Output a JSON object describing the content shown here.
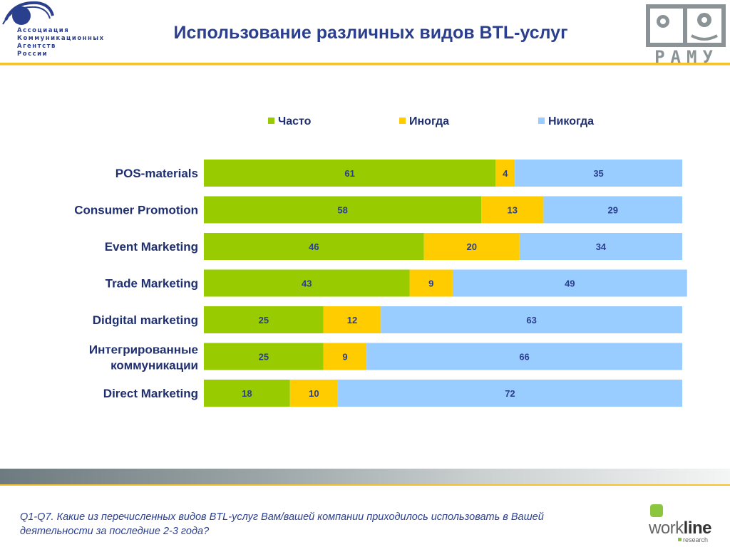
{
  "header": {
    "title": "Использование различных видов BTL-услуг",
    "left_logo_text": "Ассоциация\nКоммуникационных\nАгентств\nРоссии",
    "right_logo_text": "РАМУ"
  },
  "footer": {
    "question": "Q1-Q7. Какие из перечисленных видов BTL-услуг Вам/вашей компании приходилось использовать в Вашей деятельности за последние 2-3 года?",
    "brand_text_light": "work",
    "brand_text_bold": "line",
    "brand_subtext": "research"
  },
  "colors": {
    "often": "#99cc00",
    "sometimes": "#ffcc00",
    "never": "#99ccff",
    "accent": "#2b3f8f"
  },
  "chart_data": {
    "type": "bar",
    "orientation": "horizontal",
    "stacked": true,
    "categories": [
      "POS-materials",
      "Consumer Promotion",
      "Event Marketing",
      "Trade Marketing",
      "Didgital marketing",
      "Интегрированные коммуникации",
      "Direct Marketing"
    ],
    "series": [
      {
        "name": "Часто",
        "color": "#99cc00",
        "values": [
          61,
          58,
          46,
          43,
          25,
          25,
          18
        ]
      },
      {
        "name": "Иногда",
        "color": "#ffcc00",
        "values": [
          4,
          13,
          20,
          9,
          12,
          9,
          10
        ]
      },
      {
        "name": "Никогда",
        "color": "#99ccff",
        "values": [
          35,
          29,
          34,
          49,
          63,
          66,
          72
        ]
      }
    ],
    "xlim": [
      0,
      100
    ],
    "legend_position": "top",
    "data_labels": true,
    "grid": false
  }
}
